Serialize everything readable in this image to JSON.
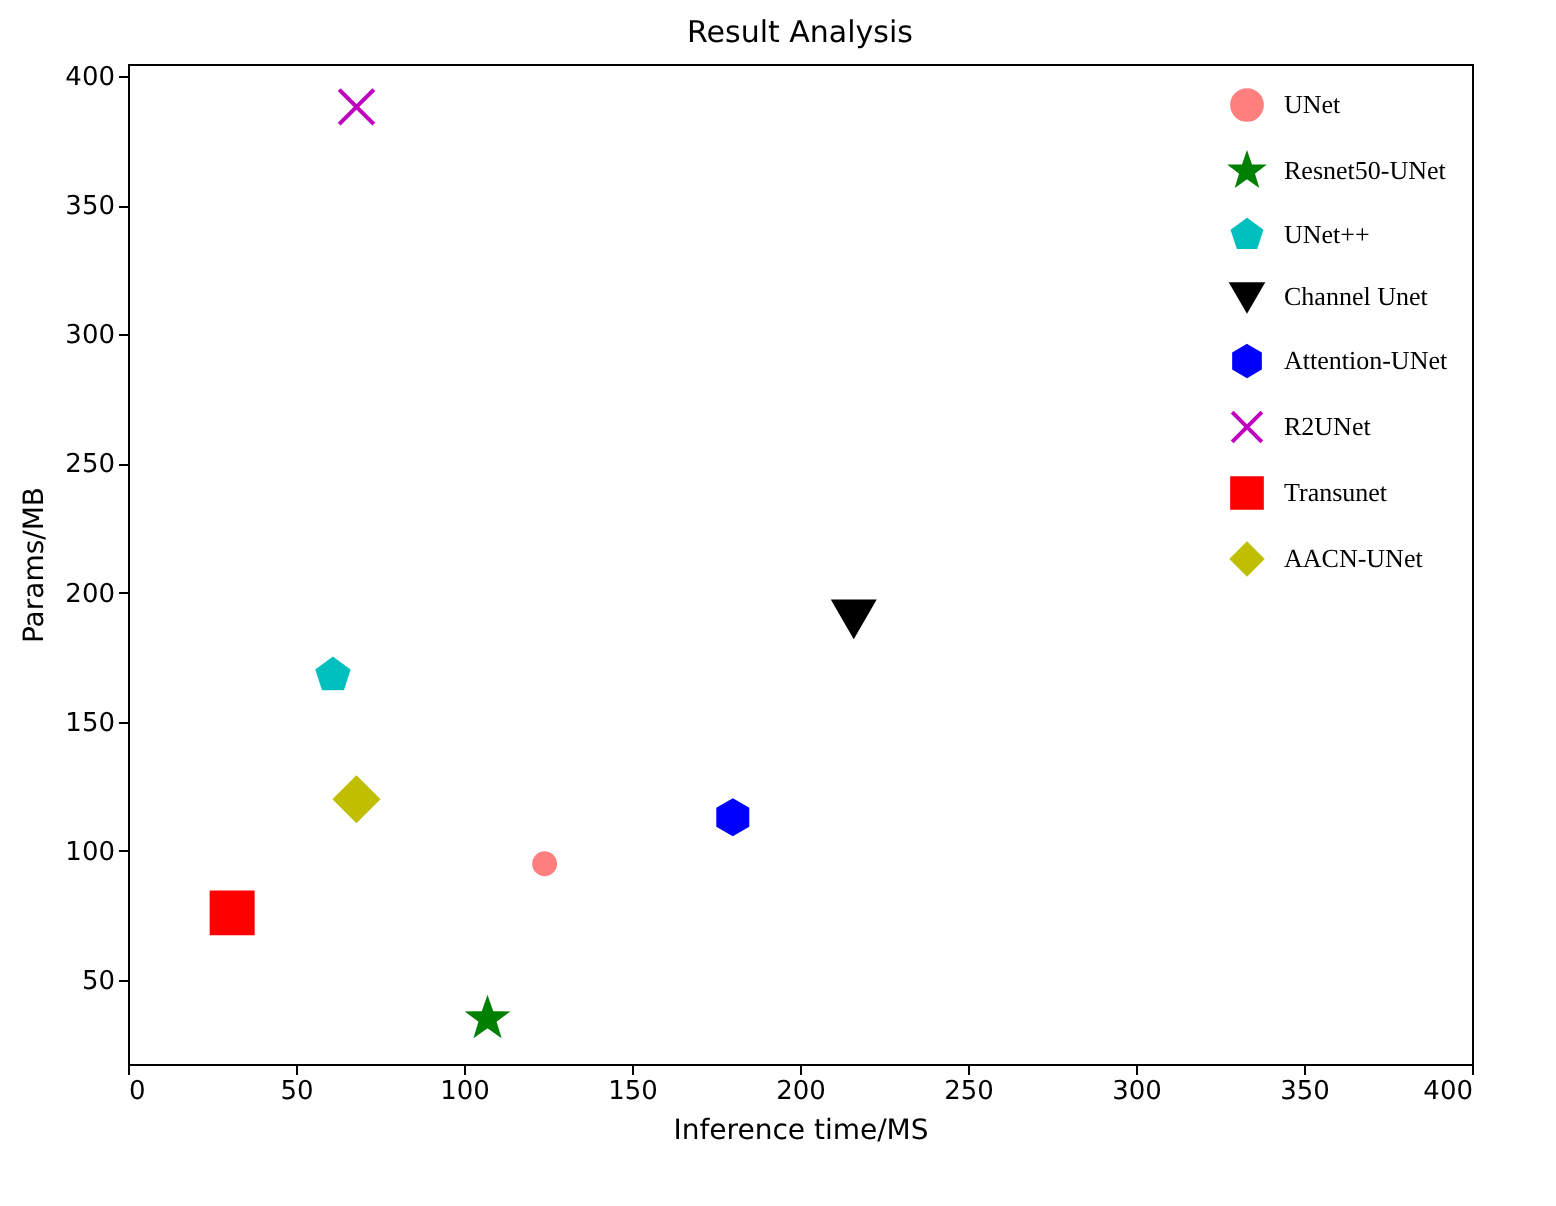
{
  "chart_data": {
    "type": "scatter",
    "title": "Result Analysis",
    "xlabel": "Inference time/MS",
    "ylabel": "Params/MB",
    "xlim": [
      0,
      400
    ],
    "xticks": [
      0,
      50,
      100,
      150,
      200,
      250,
      300,
      350,
      400
    ],
    "ylim": [
      17.5,
      404.6
    ],
    "yticks": [
      50,
      100,
      150,
      200,
      250,
      300,
      350,
      400
    ],
    "grid": false,
    "legend": "top right",
    "series": [
      {
        "name": "UNet",
        "color": "#ff7f7f",
        "marker": "circle",
        "x": [
          124
        ],
        "values": [
          95
        ]
      },
      {
        "name": "Resnet50-UNet",
        "color": "#008000",
        "marker": "star",
        "x": [
          107
        ],
        "values": [
          35
        ]
      },
      {
        "name": "UNet++",
        "color": "#00bfbf",
        "x": [
          61
        ],
        "values": [
          168
        ]
      },
      {
        "name": "Channel Unet",
        "color": "#000000",
        "marker": "triangle-down",
        "x": [
          216
        ],
        "values": [
          190
        ]
      },
      {
        "name": "Attention-UNet",
        "color": "#0000ff",
        "x": [
          180
        ],
        "values": [
          113
        ]
      },
      {
        "name": "R2UNet",
        "color": "#bf00bf",
        "marker": "cross",
        "x": [
          68
        ],
        "values": [
          388
        ]
      },
      {
        "name": "Transunet",
        "color": "#ff0000",
        "marker": "square",
        "x": [
          31
        ],
        "values": [
          76
        ]
      },
      {
        "name": "AACN-UNet",
        "color": "#bfbf00",
        "marker": "diamond",
        "x": [
          68
        ],
        "values": [
          120
        ]
      }
    ]
  }
}
